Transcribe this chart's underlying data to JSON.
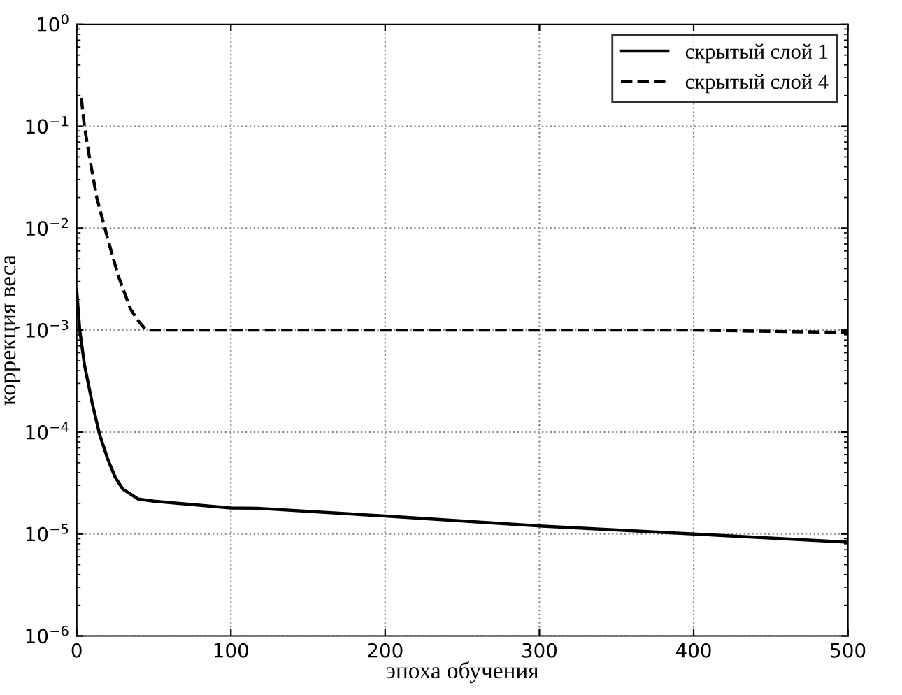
{
  "chart_data": {
    "type": "line",
    "xlabel": "эпоха обучения",
    "ylabel": "коррекция веса",
    "xlim": [
      0,
      500
    ],
    "xticks": [
      0,
      100,
      200,
      300,
      400,
      500
    ],
    "ylim": [
      1e-06,
      1
    ],
    "log": "y",
    "yticks": [
      {
        "value": 1e-06,
        "label": "10$^{−6}$"
      },
      {
        "value": 1e-05,
        "label": "10$^{−5}$"
      },
      {
        "value": 0.0001,
        "label": "10$^{−4}$"
      },
      {
        "value": 0.001,
        "label": "10$^{−3}$"
      },
      {
        "value": 0.01,
        "label": "10$^{−2}$"
      },
      {
        "value": 0.1,
        "label": "10$^{−1}$"
      },
      {
        "value": 1,
        "label": "10$^{0}$"
      }
    ],
    "grid": true,
    "legend": "top right",
    "marker": "none",
    "series": [
      {
        "name": "скрытый слой 1",
        "color": "#000000",
        "line_style": "solid",
        "x": [
          0,
          2,
          5,
          10,
          15,
          20,
          25,
          30,
          40,
          50,
          100,
          117,
          200,
          300,
          400,
          500
        ],
        "values": [
          0.0025,
          0.001,
          0.00046,
          0.000195,
          9.3e-05,
          5.5e-05,
          3.6e-05,
          2.75e-05,
          2.2e-05,
          2.1e-05,
          1.8e-05,
          1.79e-05,
          1.5e-05,
          1.2e-05,
          1e-05,
          8.3e-06
        ]
      },
      {
        "name": "скрытый слой 4",
        "color": "#000000",
        "line_style": "dashed",
        "x": [
          3,
          5,
          8,
          13,
          20,
          27,
          35,
          40,
          45,
          100,
          200,
          300,
          400,
          500
        ],
        "values": [
          0.19,
          0.1,
          0.053,
          0.02,
          0.008,
          0.0034,
          0.0016,
          0.00123,
          0.001,
          0.001,
          0.001,
          0.001,
          0.001,
          0.00095
        ]
      }
    ]
  }
}
